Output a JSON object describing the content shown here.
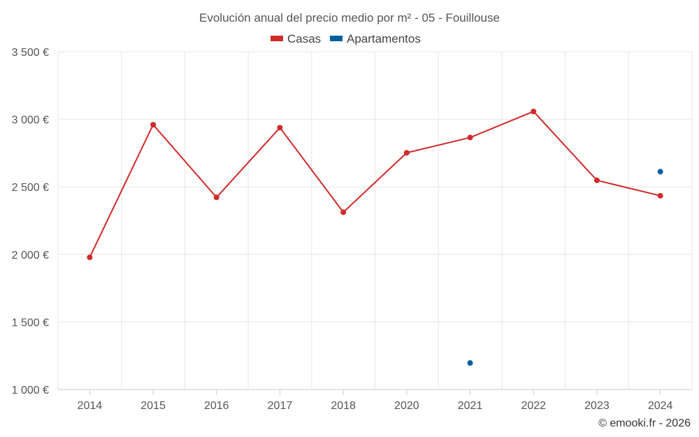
{
  "chart_data": {
    "type": "line",
    "title": "Evolución anual del precio medio por m² - 05 - Fouillouse",
    "categories": [
      "2014",
      "2015",
      "2016",
      "2017",
      "2018",
      "2020",
      "2021",
      "2022",
      "2023",
      "2024"
    ],
    "series": [
      {
        "name": "Casas",
        "color": "#d12a2a",
        "values": [
          1978,
          2960,
          2422,
          2938,
          2312,
          2752,
          2865,
          3058,
          2548,
          2434
        ]
      },
      {
        "name": "Apartamentos",
        "color": "#005f9e",
        "values": [
          null,
          null,
          null,
          null,
          null,
          null,
          1196,
          null,
          null,
          2612
        ]
      }
    ],
    "ylim": [
      1000,
      3500
    ],
    "yticks": [
      1000,
      1500,
      2000,
      2500,
      3000,
      3500
    ],
    "ytick_labels": [
      "1 000 €",
      "1 500 €",
      "2 000 €",
      "2 500 €",
      "3 000 €",
      "3 500 €"
    ],
    "xlabel": "",
    "ylabel": "",
    "grid": true,
    "legend_position": "top-center"
  },
  "credit": "© emooki.fr - 2026"
}
